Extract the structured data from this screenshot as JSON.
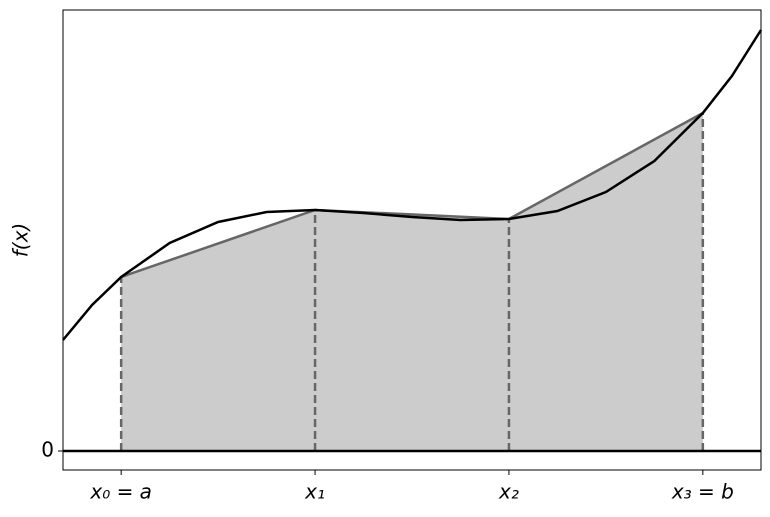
{
  "chart_data": {
    "type": "trapezoid",
    "ylabel": "f(x)",
    "xlim": [
      0.7,
      4.3
    ],
    "ylim": [
      -0.19,
      4.41
    ],
    "xticks": [
      {
        "value": 1,
        "label": "x₀ = a"
      },
      {
        "value": 2,
        "label": "x₁"
      },
      {
        "value": 3,
        "label": "x₂"
      },
      {
        "value": 4,
        "label": "x₃ = b"
      }
    ],
    "yticks": [
      0
    ],
    "series": [
      {
        "color": "#000000",
        "x": [
          0.7,
          0.85,
          1,
          1.25,
          1.5,
          1.75,
          2,
          2.25,
          2.5,
          2.75,
          3,
          3.25,
          3.5,
          3.75,
          4,
          4.15,
          4.3
        ],
        "values": [
          1.11,
          1.46,
          1.74,
          2.08,
          2.29,
          2.39,
          2.41,
          2.38,
          2.34,
          2.31,
          2.32,
          2.4,
          2.59,
          2.9,
          3.38,
          3.75,
          4.21
        ]
      },
      {
        "color": "#666666",
        "fill": "#cccccc",
        "x": [
          1,
          2,
          3,
          4
        ],
        "values": [
          1.74,
          2.41,
          2.32,
          3.38
        ]
      }
    ]
  }
}
